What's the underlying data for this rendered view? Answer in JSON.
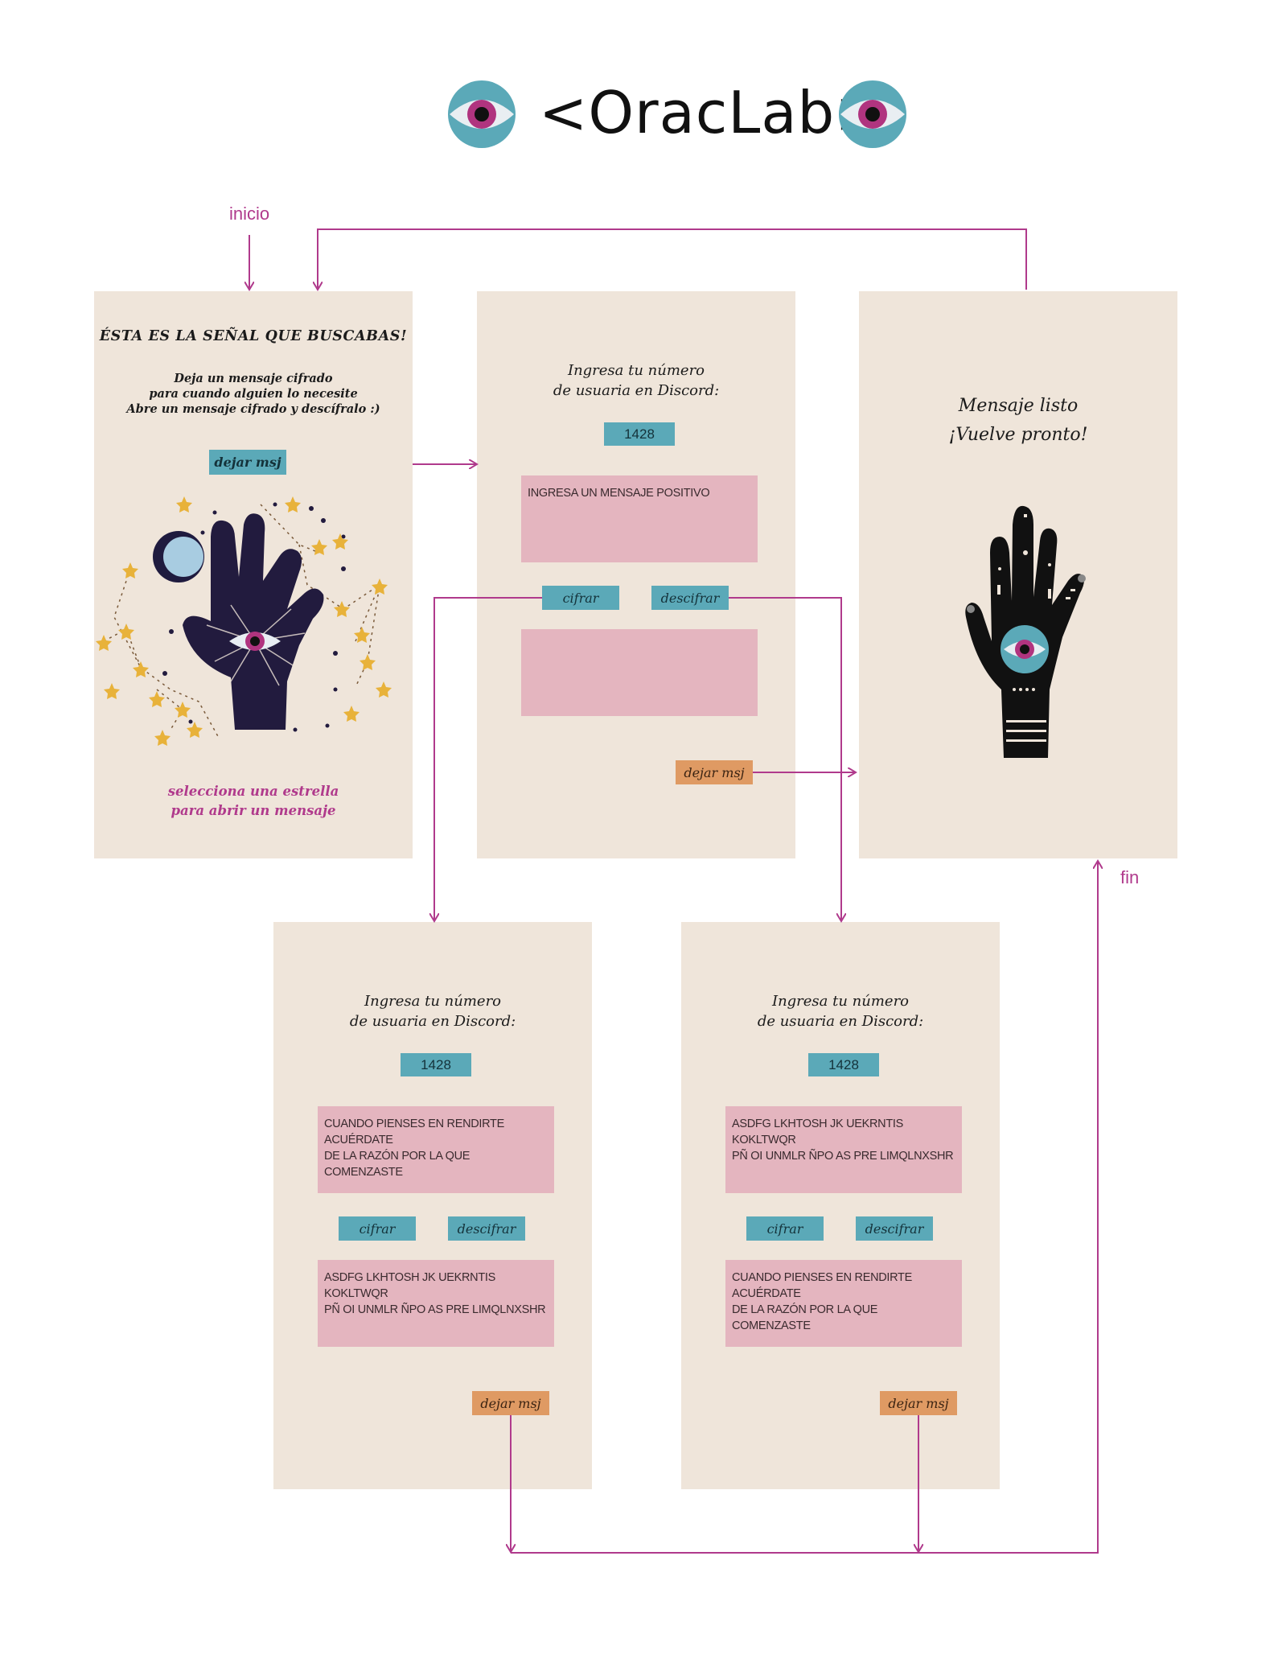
{
  "app": {
    "title": "<OracLab>"
  },
  "colors": {
    "flow": "#b03a8c",
    "screen_bg": "#efe5da",
    "button_teal": "#5ba9b8",
    "button_orange": "#df9a63",
    "message_box": "#e4b5bf",
    "eye_teal": "#5ba9b8",
    "eye_iris": "#b0347f"
  },
  "flow": {
    "start_label": "inicio",
    "end_label": "fin"
  },
  "screen_welcome": {
    "heading": "ÉSTA ES LA SEÑAL QUE BUSCABAS!",
    "body_line1": "Deja un mensaje cifrado",
    "body_line2": "para cuando alguien lo necesite",
    "body_line3": "Abre un mensaje cifrado y descífralo :)",
    "leave_button": "dejar msj",
    "illustration_icon": "hand-with-eye-and-stars-icon",
    "star_hint_line1": "selecciona una estrella",
    "star_hint_line2": "para abrir un mensaje"
  },
  "screen_input": {
    "prompt_line1": "Ingresa tu número",
    "prompt_line2": "de usuaria en Discord:",
    "user_number": "1428",
    "message_placeholder": "INGRESA UN MENSAJE POSITIVO",
    "encrypt_button": "cifrar",
    "decrypt_button": "descifrar",
    "output_text": "",
    "leave_button": "dejar msj"
  },
  "screen_done": {
    "line1": "Mensaje listo",
    "line2": "¡Vuelve pronto!",
    "illustration_icon": "black-hand-with-eye-icon"
  },
  "screen_encrypt": {
    "prompt_line1": "Ingresa tu número",
    "prompt_line2": "de usuaria en Discord:",
    "user_number": "1428",
    "message_text": "CUANDO PIENSES EN RENDIRTE ACUÉRDATE\nDE LA RAZÓN POR LA QUE COMENZASTE",
    "encrypt_button": "cifrar",
    "decrypt_button": "descifrar",
    "output_text": "ASDFG LKHTOSH JK UEKRNTIS KOKLTWQR\nPÑ OI UNMLR ÑPO AS PRE LIMQLNXSHR",
    "leave_button": "dejar msj"
  },
  "screen_decrypt": {
    "prompt_line1": "Ingresa tu número",
    "prompt_line2": "de usuaria en Discord:",
    "user_number": "1428",
    "message_text": "ASDFG LKHTOSH JK UEKRNTIS KOKLTWQR\nPÑ OI UNMLR ÑPO AS PRE LIMQLNXSHR",
    "encrypt_button": "cifrar",
    "decrypt_button": "descifrar",
    "output_text": "CUANDO PIENSES EN RENDIRTE ACUÉRDATE\nDE LA RAZÓN POR LA QUE COMENZASTE",
    "leave_button": "dejar msj"
  }
}
